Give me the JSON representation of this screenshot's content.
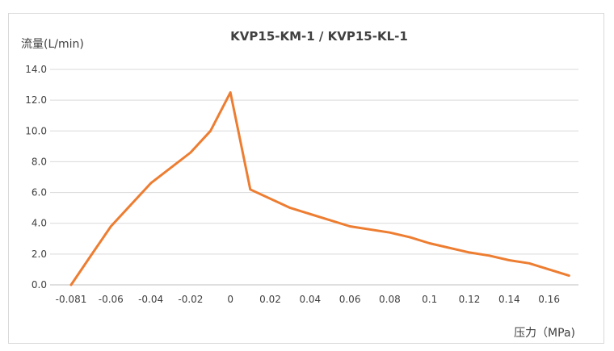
{
  "chart_data": {
    "type": "line",
    "title": "KVP15-KM-1 / KVP15-KL-1",
    "ylabel": "流量(L/min)",
    "xlabel": "压力（MPa)",
    "ylim": [
      0,
      14
    ],
    "yticks": [
      "0.0",
      "2.0",
      "4.0",
      "6.0",
      "8.0",
      "10.0",
      "12.0",
      "14.0"
    ],
    "xticks": [
      "-0.081",
      "-0.06",
      "-0.04",
      "-0.02",
      "0",
      "0.02",
      "0.04",
      "0.06",
      "0.08",
      "0.1",
      "0.12",
      "0.14",
      "0.16"
    ],
    "grid": true,
    "legend": "none",
    "series": [
      {
        "color": "#ED7D31",
        "x": [
          -0.081,
          -0.07,
          -0.06,
          -0.04,
          -0.02,
          -0.01,
          0,
          0.01,
          0.03,
          0.06,
          0.08,
          0.09,
          0.1,
          0.12,
          0.13,
          0.14,
          0.15,
          0.17
        ],
        "y": [
          0.0,
          2.0,
          3.8,
          6.6,
          8.6,
          10.0,
          12.5,
          6.2,
          5.0,
          3.8,
          3.4,
          3.1,
          2.7,
          2.1,
          1.9,
          1.6,
          1.4,
          0.6
        ]
      }
    ]
  }
}
